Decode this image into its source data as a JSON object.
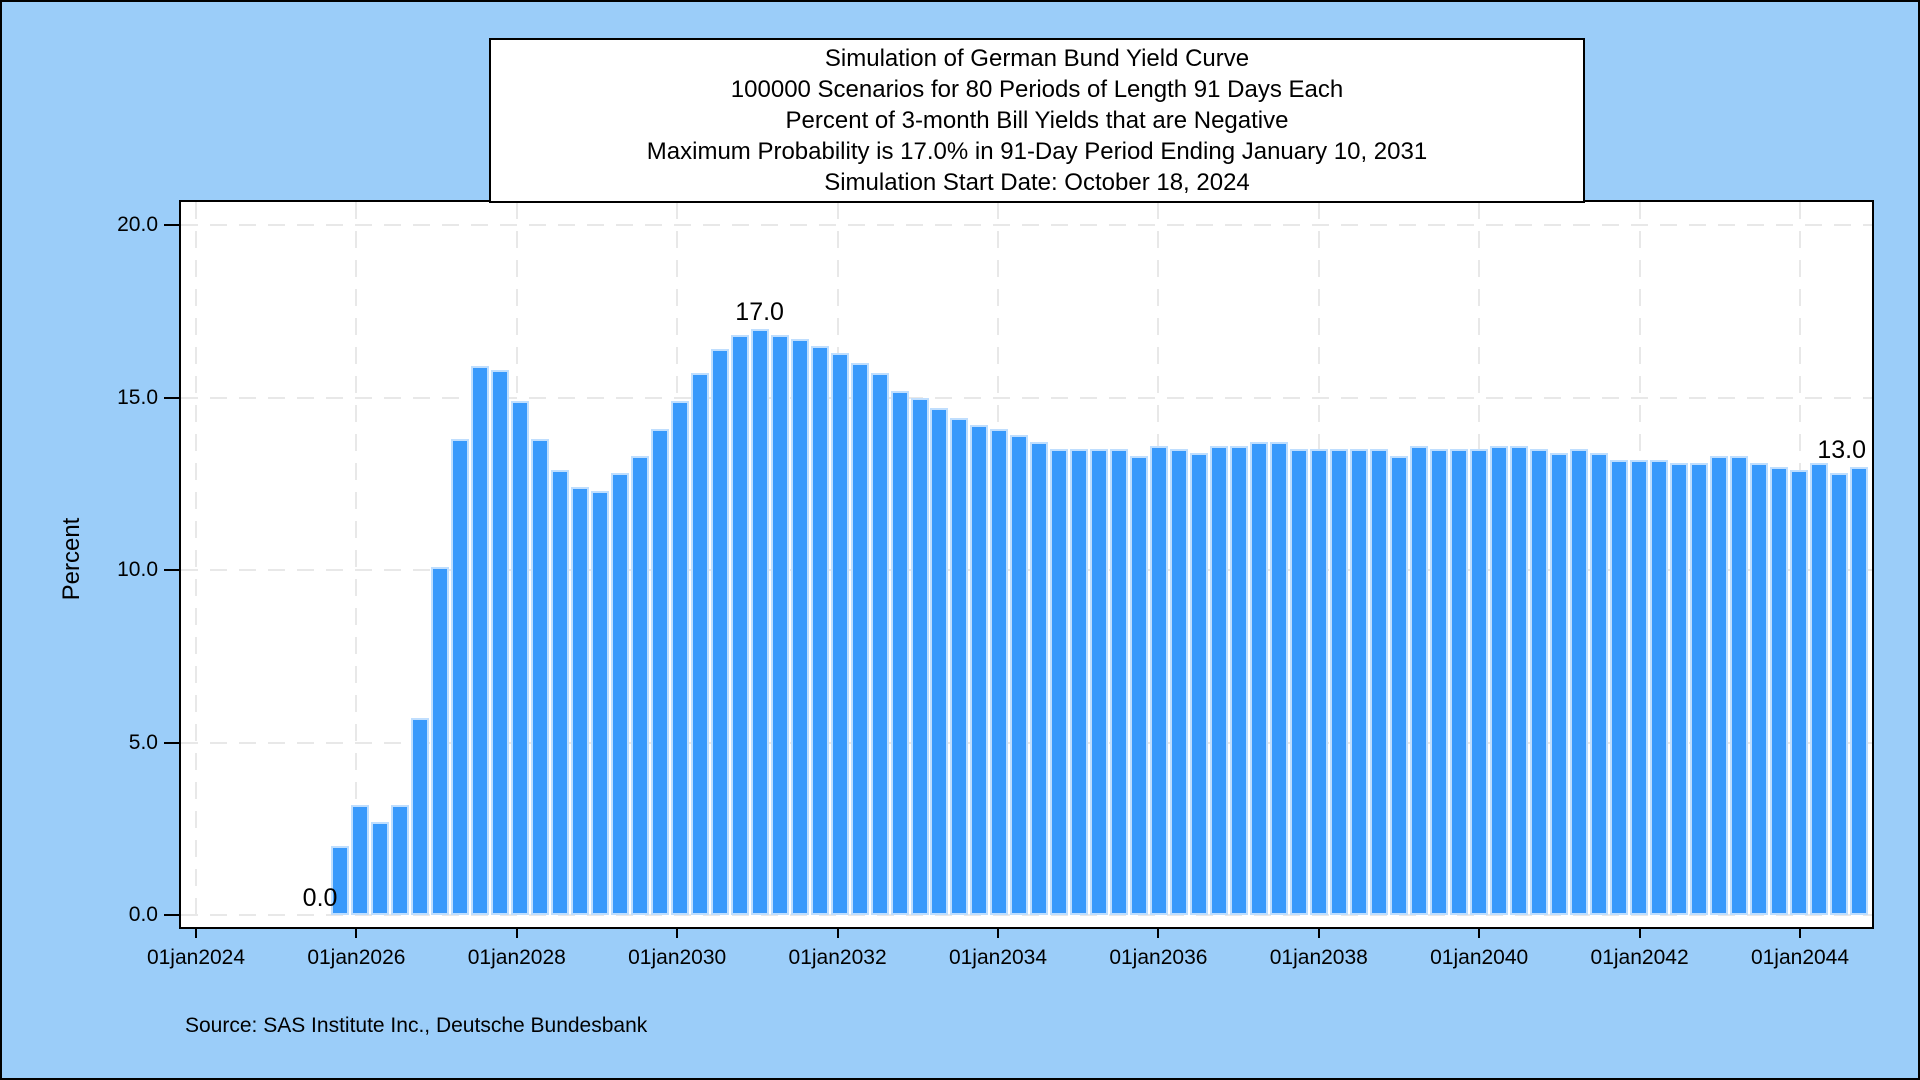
{
  "title_box": {
    "lines": [
      "Simulation of German Bund Yield Curve",
      "100000 Scenarios for 80 Periods of Length 91 Days Each",
      "Percent of 3-month Bill Yields that are Negative",
      "Maximum Probability is 17.0% in 91-Day Period Ending January 10, 2031",
      "Simulation Start Date: October 18, 2024"
    ]
  },
  "y_axis": {
    "label": "Percent",
    "tick_labels": [
      "0.0",
      "5.0",
      "10.0",
      "15.0",
      "20.0"
    ]
  },
  "x_axis": {
    "tick_labels": [
      "01jan2024",
      "01jan2026",
      "01jan2028",
      "01jan2030",
      "01jan2032",
      "01jan2034",
      "01jan2036",
      "01jan2038",
      "01jan2040",
      "01jan2042",
      "01jan2044"
    ]
  },
  "footer": {
    "source": "Source: SAS Institute Inc., Deutsche Bundesbank"
  },
  "colors": {
    "background": "#9BCDF9",
    "plot_background": "#FFFFFF",
    "bar_fill": "#3899FB",
    "bar_outline": "#BFDEFE",
    "gridline": "#E8E8E8",
    "axis": "#000000"
  },
  "chart_data": {
    "type": "bar",
    "title": "Simulation of German Bund Yield Curve",
    "subtitle": "100000 Scenarios for 80 Periods of Length 91 Days Each",
    "ylabel": "Percent",
    "ylim": [
      0,
      20
    ],
    "grid": true,
    "y_ticks": [
      0,
      5,
      10,
      15,
      20
    ],
    "x_tick_years": [
      2024,
      2026,
      2028,
      2030,
      2032,
      2034,
      2036,
      2038,
      2040,
      2042,
      2044
    ],
    "x_tick_labels": [
      "01jan2024",
      "01jan2026",
      "01jan2028",
      "01jan2030",
      "01jan2032",
      "01jan2034",
      "01jan2036",
      "01jan2038",
      "01jan2040",
      "01jan2042",
      "01jan2044"
    ],
    "scenarios": 100000,
    "num_periods": 80,
    "period_length_days": 91,
    "simulation_start_date": "October 18, 2024",
    "max_probability_pct": 17.0,
    "max_period_ending": "January 10, 2031",
    "values": [
      0.0,
      0.0,
      0.0,
      2.0,
      3.2,
      2.7,
      3.2,
      5.7,
      10.1,
      13.8,
      15.9,
      15.8,
      14.9,
      13.8,
      12.9,
      12.4,
      12.3,
      12.8,
      13.3,
      14.1,
      14.9,
      15.7,
      16.4,
      16.8,
      17.0,
      16.8,
      16.7,
      16.5,
      16.3,
      16.0,
      15.7,
      15.2,
      15.0,
      14.7,
      14.4,
      14.2,
      14.1,
      13.9,
      13.7,
      13.5,
      13.5,
      13.5,
      13.5,
      13.3,
      13.6,
      13.5,
      13.4,
      13.6,
      13.6,
      13.7,
      13.7,
      13.5,
      13.5,
      13.5,
      13.5,
      13.5,
      13.3,
      13.6,
      13.5,
      13.5,
      13.5,
      13.6,
      13.6,
      13.5,
      13.4,
      13.5,
      13.4,
      13.2,
      13.2,
      13.2,
      13.1,
      13.1,
      13.3,
      13.3,
      13.1,
      13.0,
      12.9,
      13.1,
      12.8,
      13.0
    ],
    "annotations": [
      {
        "period": 3,
        "label": "0.0",
        "align": "center"
      },
      {
        "period": 25,
        "label": "17.0",
        "align": "center"
      },
      {
        "period": 80,
        "label": "13.0",
        "align": "right"
      }
    ]
  }
}
